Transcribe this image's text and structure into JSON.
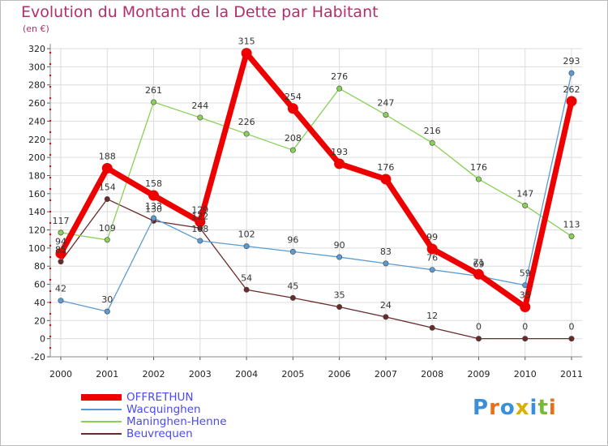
{
  "chart_data": {
    "type": "line",
    "title": "Evolution du Montant de la Dette par Habitant",
    "unit_label": "(en €)",
    "x": [
      "2000",
      "2001",
      "2002",
      "2003",
      "2004",
      "2005",
      "2006",
      "2007",
      "2008",
      "2009",
      "2010",
      "2011"
    ],
    "ylim": [
      -20,
      320
    ],
    "yticks": [
      "-20",
      "0",
      "20",
      "40",
      "60",
      "80",
      "100",
      "120",
      "140",
      "160",
      "180",
      "200",
      "220",
      "240",
      "260",
      "280",
      "300",
      "320"
    ],
    "grid": true,
    "legend_position": "bottom-left",
    "series": [
      {
        "name": "OFFRETHUN",
        "color": "#ee0000",
        "emphasis": true,
        "values": [
          94,
          188,
          158,
          129,
          315,
          254,
          193,
          176,
          99,
          71,
          35,
          262
        ],
        "labels": [
          "94",
          "188",
          "158",
          "129",
          "315",
          "254",
          "193",
          "176",
          "99",
          "71",
          "35",
          "262"
        ]
      },
      {
        "name": "Wacquinghen",
        "color": "#5a9bd4",
        "values": [
          42,
          30,
          133,
          108,
          102,
          96,
          90,
          83,
          76,
          69,
          59,
          293
        ],
        "labels": [
          "42",
          "30",
          "133",
          "108",
          "102",
          "96",
          "90",
          "83",
          "76",
          "69",
          "59",
          "293"
        ]
      },
      {
        "name": "Maninghen-Henne",
        "color": "#88d155",
        "values": [
          117,
          109,
          261,
          244,
          226,
          208,
          276,
          247,
          216,
          176,
          147,
          113
        ],
        "labels": [
          "117",
          "109",
          "261",
          "244",
          "226",
          "208",
          "276",
          "247",
          "216",
          "176",
          "147",
          "113"
        ]
      },
      {
        "name": "Beuvrequen",
        "color": "#6b2a2a",
        "values": [
          85,
          154,
          130,
          122,
          54,
          45,
          35,
          24,
          12,
          0,
          0,
          0
        ],
        "labels": [
          "85",
          "154",
          "130",
          "122",
          "54",
          "45",
          "35",
          "24",
          "12",
          "0",
          "0",
          "0"
        ]
      }
    ]
  },
  "logo": {
    "text": "Proxiti",
    "letter_colors": [
      "#3a8fd8",
      "#e8701a",
      "#3a8fd8",
      "#d8b000",
      "#3a8fd8",
      "#7ab83a",
      "#e8701a"
    ]
  }
}
